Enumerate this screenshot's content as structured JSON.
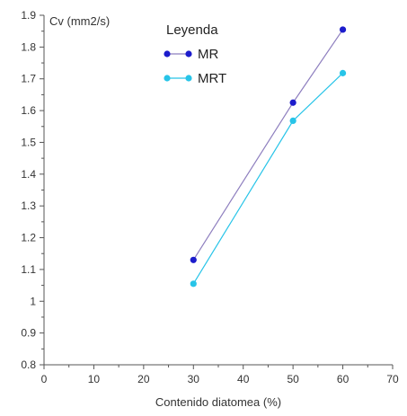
{
  "chart_data": {
    "type": "line",
    "title": "",
    "xlabel": "Contenido diatomea (%)",
    "ylabel": "Cv (mm2/s)",
    "xlim": [
      0,
      70
    ],
    "ylim": [
      0.8,
      1.9
    ],
    "x_ticks": [
      "0",
      "10",
      "20",
      "30",
      "40",
      "50",
      "60",
      "70"
    ],
    "y_ticks": [
      "0.8",
      "0.9",
      "1",
      "1.1",
      "1.2",
      "1.3",
      "1.4",
      "1.5",
      "1.6",
      "1.7",
      "1.8",
      "1.9"
    ],
    "grid": false,
    "legend": {
      "title": "Leyenda",
      "placement": "top-center"
    },
    "series": [
      {
        "name": "MR",
        "color": "#1c1ccc",
        "line_color": "#8e7fbf",
        "x": [
          30,
          50,
          60
        ],
        "y": [
          1.13,
          1.625,
          1.855
        ]
      },
      {
        "name": "MRT",
        "color": "#27c4e8",
        "line_color": "#27c4e8",
        "x": [
          30,
          50,
          60
        ],
        "y": [
          1.055,
          1.568,
          1.718
        ]
      }
    ]
  }
}
